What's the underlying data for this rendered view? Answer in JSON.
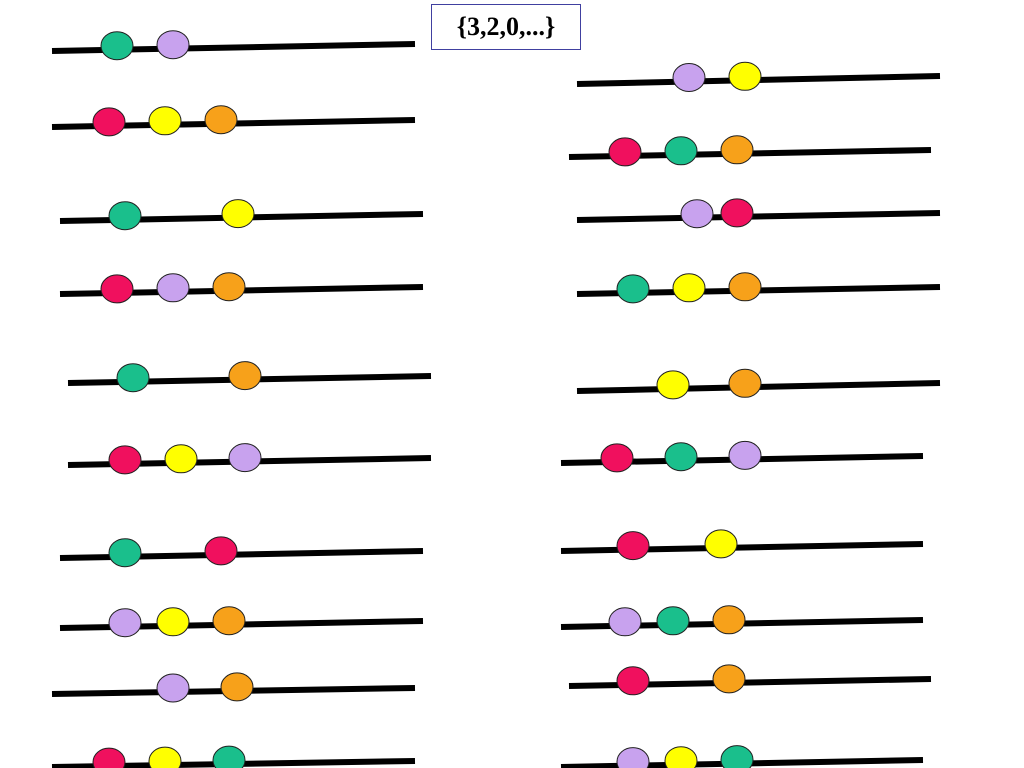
{
  "label": "{3,2,0,...}",
  "colors": {
    "green": "#1abf8c",
    "purple": "#c8a2ee",
    "red": "#f0105e",
    "yellow": "#ffff00",
    "orange": "#f7a11a",
    "line": "#000000",
    "outline": "#202020"
  },
  "strings": [
    {
      "column": "left",
      "beads": [
        "green",
        "purple"
      ]
    },
    {
      "column": "left",
      "beads": [
        "red",
        "yellow",
        "orange"
      ]
    },
    {
      "column": "left",
      "beads": [
        "green",
        "yellow"
      ]
    },
    {
      "column": "left",
      "beads": [
        "red",
        "purple",
        "orange"
      ]
    },
    {
      "column": "left",
      "beads": [
        "green",
        "orange"
      ]
    },
    {
      "column": "left",
      "beads": [
        "red",
        "yellow",
        "purple"
      ]
    },
    {
      "column": "left",
      "beads": [
        "green",
        "red"
      ]
    },
    {
      "column": "left",
      "beads": [
        "purple",
        "yellow",
        "orange"
      ]
    },
    {
      "column": "left",
      "beads": [
        "purple",
        "orange"
      ]
    },
    {
      "column": "left",
      "beads": [
        "red",
        "yellow",
        "green"
      ]
    },
    {
      "column": "right",
      "beads": [
        "purple",
        "yellow"
      ]
    },
    {
      "column": "right",
      "beads": [
        "red",
        "green",
        "orange"
      ]
    },
    {
      "column": "right",
      "beads": [
        "purple",
        "red"
      ]
    },
    {
      "column": "right",
      "beads": [
        "green",
        "yellow",
        "orange"
      ]
    },
    {
      "column": "right",
      "beads": [
        "yellow",
        "orange"
      ]
    },
    {
      "column": "right",
      "beads": [
        "red",
        "green",
        "purple"
      ]
    },
    {
      "column": "right",
      "beads": [
        "red",
        "yellow"
      ]
    },
    {
      "column": "right",
      "beads": [
        "purple",
        "green",
        "orange"
      ]
    },
    {
      "column": "right",
      "beads": [
        "red",
        "orange"
      ]
    },
    {
      "column": "right",
      "beads": [
        "purple",
        "yellow",
        "green"
      ]
    }
  ]
}
